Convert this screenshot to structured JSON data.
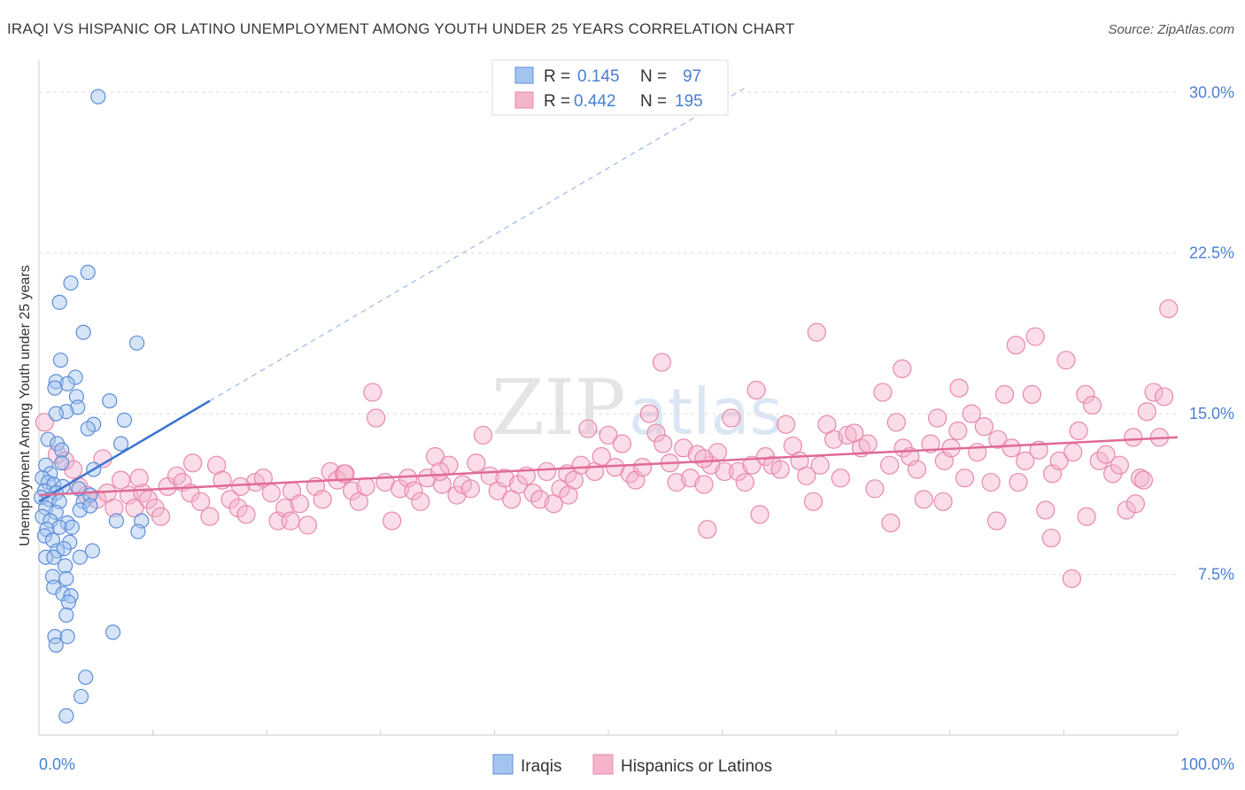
{
  "chart_data": {
    "type": "scatter",
    "title": "IRAQI VS HISPANIC OR LATINO UNEMPLOYMENT AMONG YOUTH UNDER 25 YEARS CORRELATION CHART",
    "source": "Source: ZipAtlas.com",
    "ylabel": "Unemployment Among Youth under 25 years",
    "xlim": [
      0,
      100
    ],
    "ylim": [
      0,
      31.5
    ],
    "x_tick_labels": [
      "0.0%",
      "100.0%"
    ],
    "y_ticks": [
      7.5,
      15.0,
      22.5,
      30.0
    ],
    "y_tick_labels": [
      "7.5%",
      "15.0%",
      "22.5%",
      "30.0%"
    ],
    "watermark": {
      "zip": "ZIP",
      "atlas": "atlas"
    },
    "legend": [
      {
        "r_label": "R =",
        "r_value": "0.145",
        "n_label": "N =",
        "n_value": "97",
        "color": "#4a7fd4"
      },
      {
        "r_label": "R =",
        "r_value": "0.442",
        "n_label": "N =",
        "n_value": "195",
        "color": "#e06a96"
      }
    ],
    "series": [
      {
        "name": "Iraqis",
        "color": "#5d8ed8",
        "fill": "#a4c4f0",
        "trend": {
          "x0": 0,
          "y0": 10.9,
          "x1": 15,
          "y1": 15.6,
          "dash_to_x": 62,
          "dash_to_y": 30.2
        },
        "points": [
          [
            5.2,
            29.8
          ],
          [
            4.3,
            21.6
          ],
          [
            2.8,
            21.1
          ],
          [
            1.8,
            20.2
          ],
          [
            3.9,
            18.8
          ],
          [
            8.6,
            18.3
          ],
          [
            1.9,
            17.5
          ],
          [
            1.5,
            16.5
          ],
          [
            3.2,
            16.7
          ],
          [
            2.5,
            16.4
          ],
          [
            1.4,
            16.2
          ],
          [
            3.3,
            15.8
          ],
          [
            6.2,
            15.6
          ],
          [
            3.4,
            15.3
          ],
          [
            2.4,
            15.1
          ],
          [
            1.5,
            15.0
          ],
          [
            7.5,
            14.7
          ],
          [
            4.8,
            14.5
          ],
          [
            4.3,
            14.3
          ],
          [
            0.8,
            13.8
          ],
          [
            1.6,
            13.6
          ],
          [
            2.0,
            13.3
          ],
          [
            7.2,
            13.6
          ],
          [
            0.6,
            12.6
          ],
          [
            1.0,
            12.2
          ],
          [
            2.0,
            12.7
          ],
          [
            4.8,
            12.4
          ],
          [
            0.3,
            12.0
          ],
          [
            0.8,
            11.8
          ],
          [
            1.3,
            11.7
          ],
          [
            2.1,
            11.6
          ],
          [
            0.5,
            11.4
          ],
          [
            1.5,
            11.3
          ],
          [
            3.5,
            11.5
          ],
          [
            0.2,
            11.1
          ],
          [
            0.9,
            11.0
          ],
          [
            1.8,
            10.9
          ],
          [
            3.9,
            10.9
          ],
          [
            4.5,
            11.2
          ],
          [
            0.6,
            10.6
          ],
          [
            1.5,
            10.4
          ],
          [
            3.6,
            10.5
          ],
          [
            4.5,
            10.7
          ],
          [
            0.3,
            10.2
          ],
          [
            1.0,
            10.0
          ],
          [
            2.5,
            9.9
          ],
          [
            6.8,
            10.0
          ],
          [
            9.0,
            10.0
          ],
          [
            0.7,
            9.6
          ],
          [
            1.8,
            9.7
          ],
          [
            2.9,
            9.7
          ],
          [
            0.5,
            9.3
          ],
          [
            1.2,
            9.1
          ],
          [
            2.7,
            9.0
          ],
          [
            8.7,
            9.5
          ],
          [
            1.6,
            8.6
          ],
          [
            2.2,
            8.7
          ],
          [
            4.7,
            8.6
          ],
          [
            0.6,
            8.3
          ],
          [
            1.3,
            8.3
          ],
          [
            3.6,
            8.3
          ],
          [
            2.3,
            7.9
          ],
          [
            1.2,
            7.4
          ],
          [
            2.4,
            7.3
          ],
          [
            1.3,
            6.9
          ],
          [
            2.1,
            6.6
          ],
          [
            2.8,
            6.5
          ],
          [
            2.6,
            6.2
          ],
          [
            2.4,
            5.6
          ],
          [
            6.5,
            4.8
          ],
          [
            1.4,
            4.6
          ],
          [
            2.5,
            4.6
          ],
          [
            1.5,
            4.2
          ],
          [
            4.1,
            2.7
          ],
          [
            3.7,
            1.8
          ],
          [
            2.4,
            0.9
          ]
        ]
      },
      {
        "name": "Hispanics or Latinos",
        "color": "#e888ac",
        "fill": "#f4b4cc",
        "trend": {
          "x0": 0,
          "y0": 11.2,
          "x1": 100,
          "y1": 13.9
        },
        "points": [
          [
            0.5,
            14.6
          ],
          [
            1.6,
            13.1
          ],
          [
            2.3,
            12.8
          ],
          [
            3.5,
            11.6
          ],
          [
            4.2,
            11.2
          ],
          [
            5.1,
            11.0
          ],
          [
            6.0,
            11.3
          ],
          [
            6.6,
            10.6
          ],
          [
            7.2,
            11.9
          ],
          [
            7.9,
            11.2
          ],
          [
            8.4,
            10.6
          ],
          [
            9.1,
            11.3
          ],
          [
            9.6,
            11.0
          ],
          [
            10.2,
            10.6
          ],
          [
            10.7,
            10.2
          ],
          [
            11.3,
            11.6
          ],
          [
            12.1,
            12.1
          ],
          [
            12.6,
            11.8
          ],
          [
            13.3,
            11.3
          ],
          [
            14.2,
            10.9
          ],
          [
            15.0,
            10.2
          ],
          [
            15.6,
            12.6
          ],
          [
            16.1,
            11.9
          ],
          [
            16.8,
            11.0
          ],
          [
            17.5,
            10.6
          ],
          [
            18.2,
            10.3
          ],
          [
            19.0,
            11.8
          ],
          [
            19.7,
            12.0
          ],
          [
            20.4,
            11.3
          ],
          [
            21.0,
            10.0
          ],
          [
            21.6,
            10.6
          ],
          [
            22.2,
            11.4
          ],
          [
            22.9,
            10.8
          ],
          [
            23.6,
            9.8
          ],
          [
            24.3,
            11.6
          ],
          [
            24.9,
            11.0
          ],
          [
            25.6,
            12.3
          ],
          [
            26.2,
            11.9
          ],
          [
            26.8,
            12.2
          ],
          [
            27.5,
            11.4
          ],
          [
            28.1,
            10.9
          ],
          [
            28.7,
            11.6
          ],
          [
            29.3,
            16.0
          ],
          [
            29.6,
            14.8
          ],
          [
            30.4,
            11.8
          ],
          [
            31.0,
            10.0
          ],
          [
            31.7,
            11.5
          ],
          [
            32.4,
            12.0
          ],
          [
            32.9,
            11.4
          ],
          [
            33.5,
            10.9
          ],
          [
            34.1,
            12.0
          ],
          [
            34.8,
            13.0
          ],
          [
            35.4,
            11.7
          ],
          [
            36.0,
            12.6
          ],
          [
            36.7,
            11.2
          ],
          [
            37.2,
            11.7
          ],
          [
            37.9,
            11.5
          ],
          [
            38.4,
            12.7
          ],
          [
            39.0,
            14.0
          ],
          [
            39.6,
            12.1
          ],
          [
            40.3,
            11.4
          ],
          [
            40.9,
            12.0
          ],
          [
            41.5,
            11.0
          ],
          [
            42.1,
            11.7
          ],
          [
            42.8,
            12.1
          ],
          [
            43.4,
            11.3
          ],
          [
            44.0,
            11.0
          ],
          [
            44.6,
            12.3
          ],
          [
            45.2,
            10.8
          ],
          [
            45.8,
            11.5
          ],
          [
            46.4,
            12.2
          ],
          [
            47.0,
            11.9
          ],
          [
            47.6,
            12.6
          ],
          [
            48.2,
            14.3
          ],
          [
            48.8,
            12.3
          ],
          [
            49.4,
            13.0
          ],
          [
            50.0,
            14.0
          ],
          [
            50.6,
            12.5
          ],
          [
            51.2,
            13.6
          ],
          [
            51.9,
            12.2
          ],
          [
            52.4,
            11.9
          ],
          [
            53.0,
            12.5
          ],
          [
            53.6,
            15.0
          ],
          [
            54.2,
            14.1
          ],
          [
            54.8,
            13.6
          ],
          [
            55.4,
            12.7
          ],
          [
            56.0,
            11.8
          ],
          [
            56.6,
            13.4
          ],
          [
            57.2,
            12.0
          ],
          [
            57.8,
            13.1
          ],
          [
            58.4,
            11.7
          ],
          [
            59.0,
            12.6
          ],
          [
            59.6,
            13.2
          ],
          [
            60.2,
            12.3
          ],
          [
            60.8,
            14.8
          ],
          [
            61.4,
            12.3
          ],
          [
            62.0,
            11.8
          ],
          [
            62.6,
            12.6
          ],
          [
            63.3,
            10.3
          ],
          [
            63.8,
            13.0
          ],
          [
            64.4,
            12.6
          ],
          [
            65.1,
            12.4
          ],
          [
            65.6,
            14.5
          ],
          [
            66.2,
            13.5
          ],
          [
            66.8,
            12.8
          ],
          [
            67.4,
            12.1
          ],
          [
            68.0,
            10.9
          ],
          [
            68.6,
            12.6
          ],
          [
            69.2,
            14.5
          ],
          [
            69.8,
            13.8
          ],
          [
            70.4,
            12.0
          ],
          [
            71.0,
            14.0
          ],
          [
            71.6,
            14.1
          ],
          [
            72.2,
            13.4
          ],
          [
            72.8,
            13.6
          ],
          [
            73.4,
            11.5
          ],
          [
            74.1,
            16.0
          ],
          [
            74.7,
            12.6
          ],
          [
            75.3,
            14.6
          ],
          [
            75.9,
            13.4
          ],
          [
            76.5,
            13.0
          ],
          [
            77.1,
            12.4
          ],
          [
            77.7,
            11.0
          ],
          [
            78.3,
            13.6
          ],
          [
            78.9,
            14.8
          ],
          [
            79.5,
            12.8
          ],
          [
            80.1,
            13.4
          ],
          [
            80.7,
            14.2
          ],
          [
            81.3,
            12.0
          ],
          [
            81.9,
            15.0
          ],
          [
            82.4,
            13.2
          ],
          [
            83.0,
            14.4
          ],
          [
            83.6,
            11.8
          ],
          [
            84.2,
            13.8
          ],
          [
            84.8,
            15.9
          ],
          [
            85.4,
            13.4
          ],
          [
            86.0,
            11.8
          ],
          [
            86.6,
            12.8
          ],
          [
            87.2,
            15.9
          ],
          [
            87.8,
            13.3
          ],
          [
            88.4,
            10.5
          ],
          [
            89.0,
            12.2
          ],
          [
            89.6,
            12.8
          ],
          [
            90.2,
            17.5
          ],
          [
            90.8,
            13.2
          ],
          [
            91.3,
            14.2
          ],
          [
            91.9,
            15.9
          ],
          [
            92.5,
            15.4
          ],
          [
            93.1,
            12.8
          ],
          [
            93.7,
            13.1
          ],
          [
            94.3,
            12.2
          ],
          [
            94.9,
            12.6
          ],
          [
            95.5,
            10.5
          ],
          [
            96.1,
            13.9
          ],
          [
            96.7,
            12.0
          ],
          [
            97.3,
            15.1
          ],
          [
            97.9,
            16.0
          ],
          [
            98.4,
            13.9
          ],
          [
            98.8,
            15.8
          ],
          [
            99.2,
            19.9
          ],
          [
            54.7,
            17.4
          ],
          [
            58.7,
            9.6
          ],
          [
            68.3,
            18.8
          ],
          [
            75.8,
            17.1
          ],
          [
            80.8,
            16.2
          ],
          [
            85.8,
            18.2
          ],
          [
            87.5,
            18.6
          ],
          [
            88.9,
            9.2
          ],
          [
            90.7,
            7.3
          ],
          [
            92.0,
            10.2
          ],
          [
            97.0,
            11.9
          ],
          [
            96.3,
            10.8
          ],
          [
            84.1,
            10.0
          ],
          [
            79.4,
            10.9
          ],
          [
            74.8,
            9.9
          ],
          [
            63.0,
            16.1
          ],
          [
            58.4,
            12.9
          ],
          [
            46.5,
            11.2
          ],
          [
            35.2,
            12.3
          ],
          [
            26.9,
            12.2
          ],
          [
            22.1,
            10.0
          ],
          [
            17.7,
            11.6
          ],
          [
            13.5,
            12.7
          ],
          [
            8.8,
            12.0
          ],
          [
            5.6,
            12.9
          ],
          [
            3.0,
            12.4
          ]
        ]
      }
    ]
  },
  "bottom_legend": [
    {
      "label": "Iraqis"
    },
    {
      "label": "Hispanics or Latinos"
    }
  ]
}
